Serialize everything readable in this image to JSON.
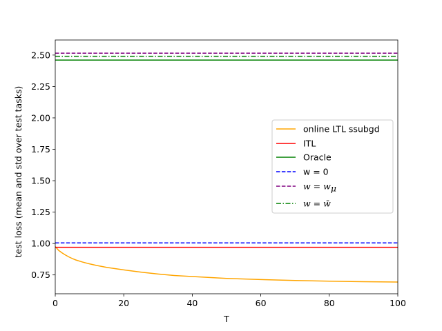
{
  "chart_data": {
    "type": "line",
    "title": "",
    "xlabel": "T",
    "ylabel": "test loss (mean and std over test tasks)",
    "xlim": [
      0,
      100
    ],
    "ylim": [
      0.6,
      2.62
    ],
    "xticks": [
      0,
      20,
      40,
      60,
      80,
      100
    ],
    "xtick_labels": [
      "0",
      "20",
      "40",
      "60",
      "80",
      "100"
    ],
    "yticks": [
      0.75,
      1.0,
      1.25,
      1.5,
      1.75,
      2.0,
      2.25,
      2.5
    ],
    "ytick_labels": [
      "0.75",
      "1.00",
      "1.25",
      "1.50",
      "1.75",
      "2.00",
      "2.25",
      "2.50"
    ],
    "grid": false,
    "legend_position": "center-right",
    "series": [
      {
        "name": "online LTL ssubgd",
        "color": "#ffa500",
        "style": "solid",
        "x": [
          0,
          1,
          2,
          3,
          4,
          5,
          6,
          8,
          10,
          12,
          15,
          20,
          25,
          30,
          35,
          40,
          50,
          60,
          70,
          80,
          90,
          100
        ],
        "y": [
          0.975,
          0.945,
          0.925,
          0.908,
          0.893,
          0.88,
          0.869,
          0.852,
          0.838,
          0.826,
          0.81,
          0.79,
          0.772,
          0.757,
          0.745,
          0.737,
          0.722,
          0.713,
          0.706,
          0.7,
          0.696,
          0.693
        ]
      },
      {
        "name": "ITL",
        "color": "#ff0000",
        "style": "solid",
        "x": [
          0,
          100
        ],
        "y": [
          0.97,
          0.97
        ]
      },
      {
        "name": "Oracle",
        "color": "#008000",
        "style": "solid",
        "x": [
          0,
          100
        ],
        "y": [
          2.46,
          2.46
        ]
      },
      {
        "name": "w = 0",
        "color": "#0000ff",
        "style": "dashed",
        "x": [
          0,
          100
        ],
        "y": [
          1.005,
          1.005
        ]
      },
      {
        "name": "w = w_μ",
        "color": "#800080",
        "style": "dashed",
        "x": [
          0,
          100
        ],
        "y": [
          2.515,
          2.515
        ]
      },
      {
        "name": "w = w̄",
        "color": "#008000",
        "style": "dashdot",
        "x": [
          0,
          100
        ],
        "y": [
          2.49,
          2.49
        ]
      }
    ]
  },
  "legend": {
    "items": [
      {
        "label": "online LTL ssubgd"
      },
      {
        "label": "ITL"
      },
      {
        "label": "Oracle"
      },
      {
        "label": "w = 0"
      },
      {
        "math_lhs": "w",
        "math_eq": " = ",
        "math_rhs": "w",
        "math_sub": "μ"
      },
      {
        "math_lhs": "w",
        "math_eq": " = ",
        "math_rhs": "w̄"
      }
    ]
  }
}
